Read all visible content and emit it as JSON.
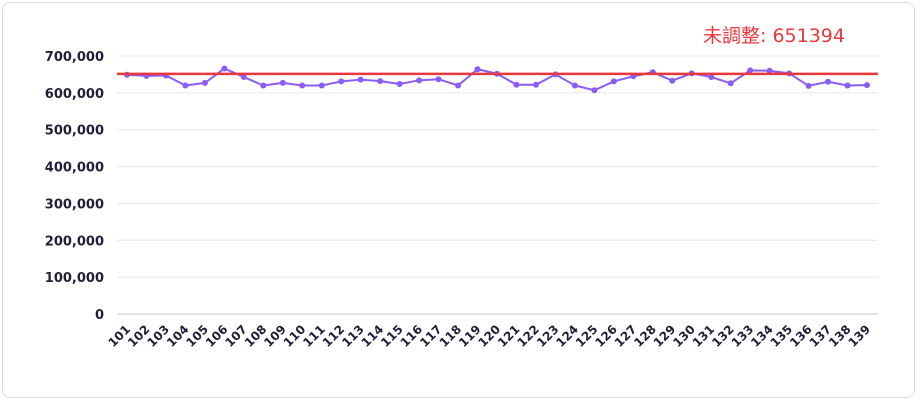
{
  "chart_data": {
    "type": "line",
    "title": "",
    "xlabel": "",
    "ylabel": "",
    "ylim": [
      0,
      700000
    ],
    "yticks": [
      "0",
      "100,000",
      "200,000",
      "300,000",
      "400,000",
      "500,000",
      "600,000",
      "700,000"
    ],
    "ytick_values": [
      0,
      100000,
      200000,
      300000,
      400000,
      500000,
      600000,
      700000
    ],
    "grid": true,
    "categories": [
      "101",
      "102",
      "103",
      "104",
      "105",
      "106",
      "107",
      "108",
      "109",
      "110",
      "111",
      "112",
      "113",
      "114",
      "115",
      "116",
      "117",
      "118",
      "119",
      "120",
      "121",
      "122",
      "123",
      "124",
      "125",
      "126",
      "127",
      "128",
      "129",
      "130",
      "131",
      "132",
      "133",
      "134",
      "135",
      "136",
      "137",
      "138",
      "139"
    ],
    "series": [
      {
        "color": "#8b5cf6",
        "values": [
          649000,
          646000,
          647000,
          620000,
          627000,
          666000,
          643000,
          620000,
          627000,
          620000,
          620000,
          631000,
          636000,
          632000,
          624000,
          634000,
          637000,
          620000,
          664000,
          652000,
          622000,
          622000,
          650000,
          620000,
          607000,
          631000,
          645000,
          656000,
          633000,
          653000,
          643000,
          626000,
          661000,
          660000,
          653000,
          619000,
          630000,
          620000,
          621000
        ]
      }
    ],
    "reference_line": {
      "value": 651394,
      "label": "未調整: 651394",
      "color": "#e8383d"
    }
  }
}
